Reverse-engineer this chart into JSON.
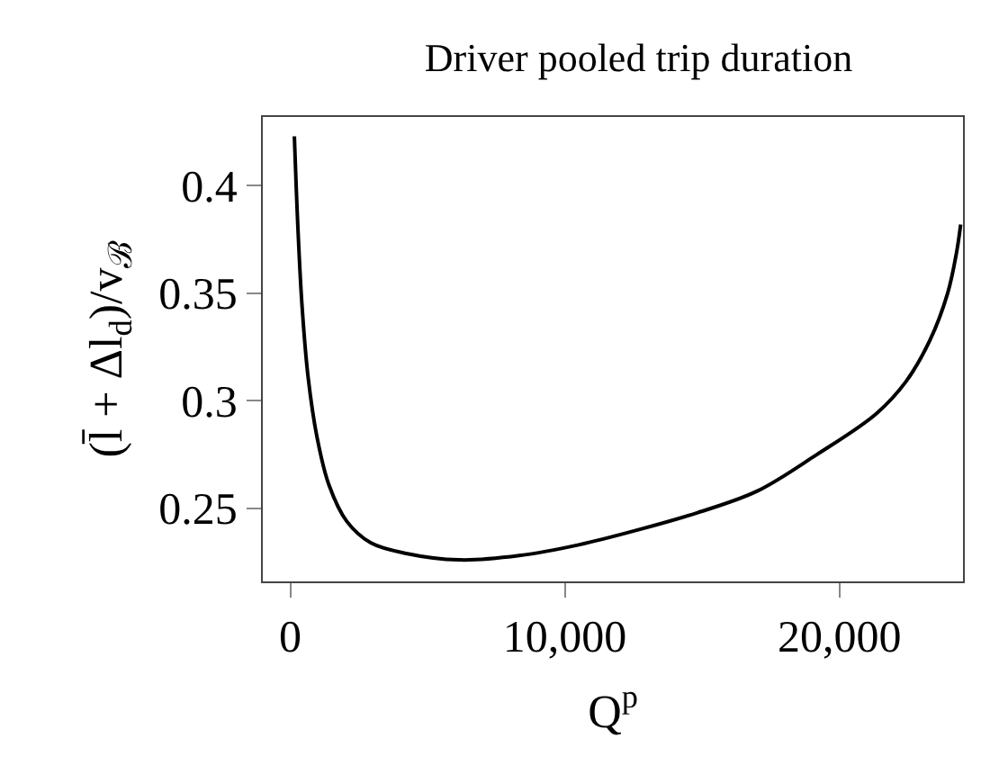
{
  "chart_data": {
    "type": "line",
    "title": "Driver pooled trip duration",
    "xlabel": "Q$^{p}$",
    "ylabel": "(l̄ + Δl$_{d}$)/v$_{ℬ}$",
    "x": [
      150,
      280,
      430,
      650,
      975,
      1405,
      2055,
      2925,
      4225,
      6175,
      8340,
      10505,
      12675,
      14840,
      17005,
      19175,
      21340,
      22425,
      23290,
      23940,
      24265,
      24415
    ],
    "series": [
      {
        "color": "#000000",
        "values": [
          0.423,
          0.38,
          0.344,
          0.311,
          0.283,
          0.261,
          0.244,
          0.234,
          0.229,
          0.226,
          0.228,
          0.233,
          0.24,
          0.248,
          0.258,
          0.275,
          0.294,
          0.309,
          0.328,
          0.35,
          0.369,
          0.382
        ]
      }
    ],
    "xlim": [
      -1000,
      24500
    ],
    "ylim": [
      0.216,
      0.432
    ],
    "xticks": [
      0,
      {
        "value": 10000,
        "label": "10,000"
      },
      {
        "value": 20000,
        "label": "20,000"
      }
    ],
    "yticks": [
      0.25,
      0.3,
      0.35,
      0.4
    ],
    "line_style": "solid",
    "marker": "none"
  }
}
